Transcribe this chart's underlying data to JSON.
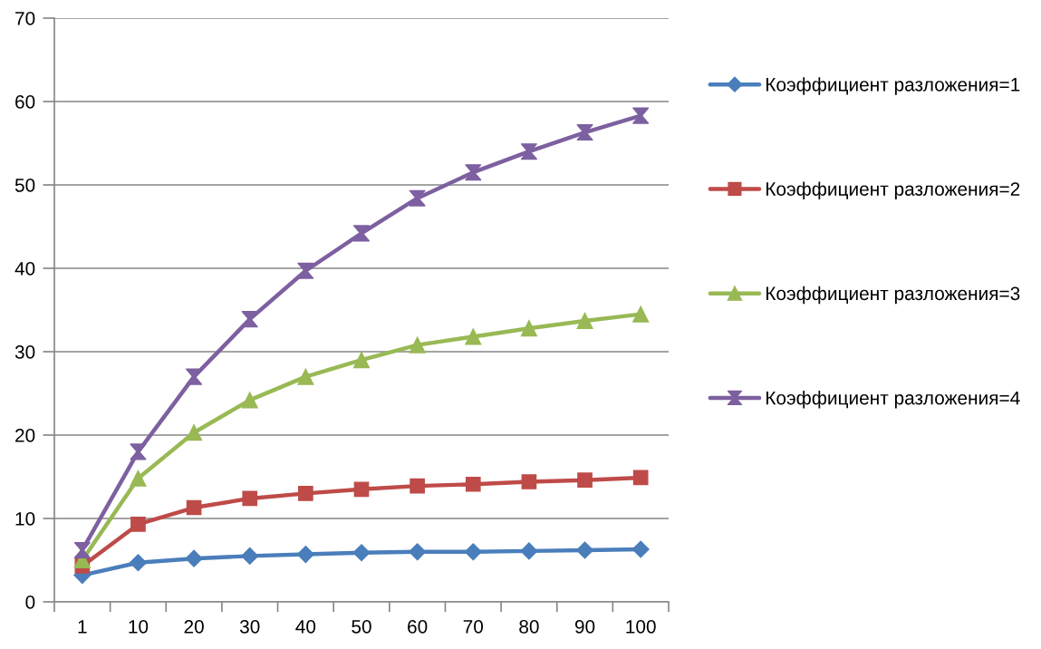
{
  "chart_data": {
    "type": "line",
    "categories": [
      "1",
      "10",
      "20",
      "30",
      "40",
      "50",
      "60",
      "70",
      "80",
      "90",
      "100"
    ],
    "ylim": [
      0,
      70
    ],
    "yticks": [
      0,
      10,
      20,
      30,
      40,
      50,
      60,
      70
    ],
    "grid": "y",
    "legend": "right",
    "line_style": "solid",
    "series": [
      {
        "name": "Коэффициент разложения=1",
        "color": "#4a7ebb",
        "marker": "diamond",
        "values": [
          3.2,
          4.7,
          5.2,
          5.5,
          5.7,
          5.9,
          6.0,
          6.0,
          6.1,
          6.2,
          6.3
        ]
      },
      {
        "name": "Коэффициент разложения=2",
        "color": "#be4b48",
        "marker": "square",
        "values": [
          4.3,
          9.3,
          11.3,
          12.4,
          13.0,
          13.5,
          13.9,
          14.1,
          14.4,
          14.6,
          14.9
        ]
      },
      {
        "name": "Коэффициент разложения=3",
        "color": "#98b954",
        "marker": "triangle",
        "values": [
          5.0,
          14.8,
          20.3,
          24.2,
          27.0,
          29.0,
          30.8,
          31.8,
          32.8,
          33.7,
          34.5
        ]
      },
      {
        "name": "Коэффициент разложения=4",
        "color": "#7d60a0",
        "marker": "star",
        "values": [
          6.2,
          18.0,
          27.0,
          33.9,
          39.7,
          44.2,
          48.4,
          51.5,
          54.0,
          56.3,
          58.3
        ]
      }
    ]
  }
}
